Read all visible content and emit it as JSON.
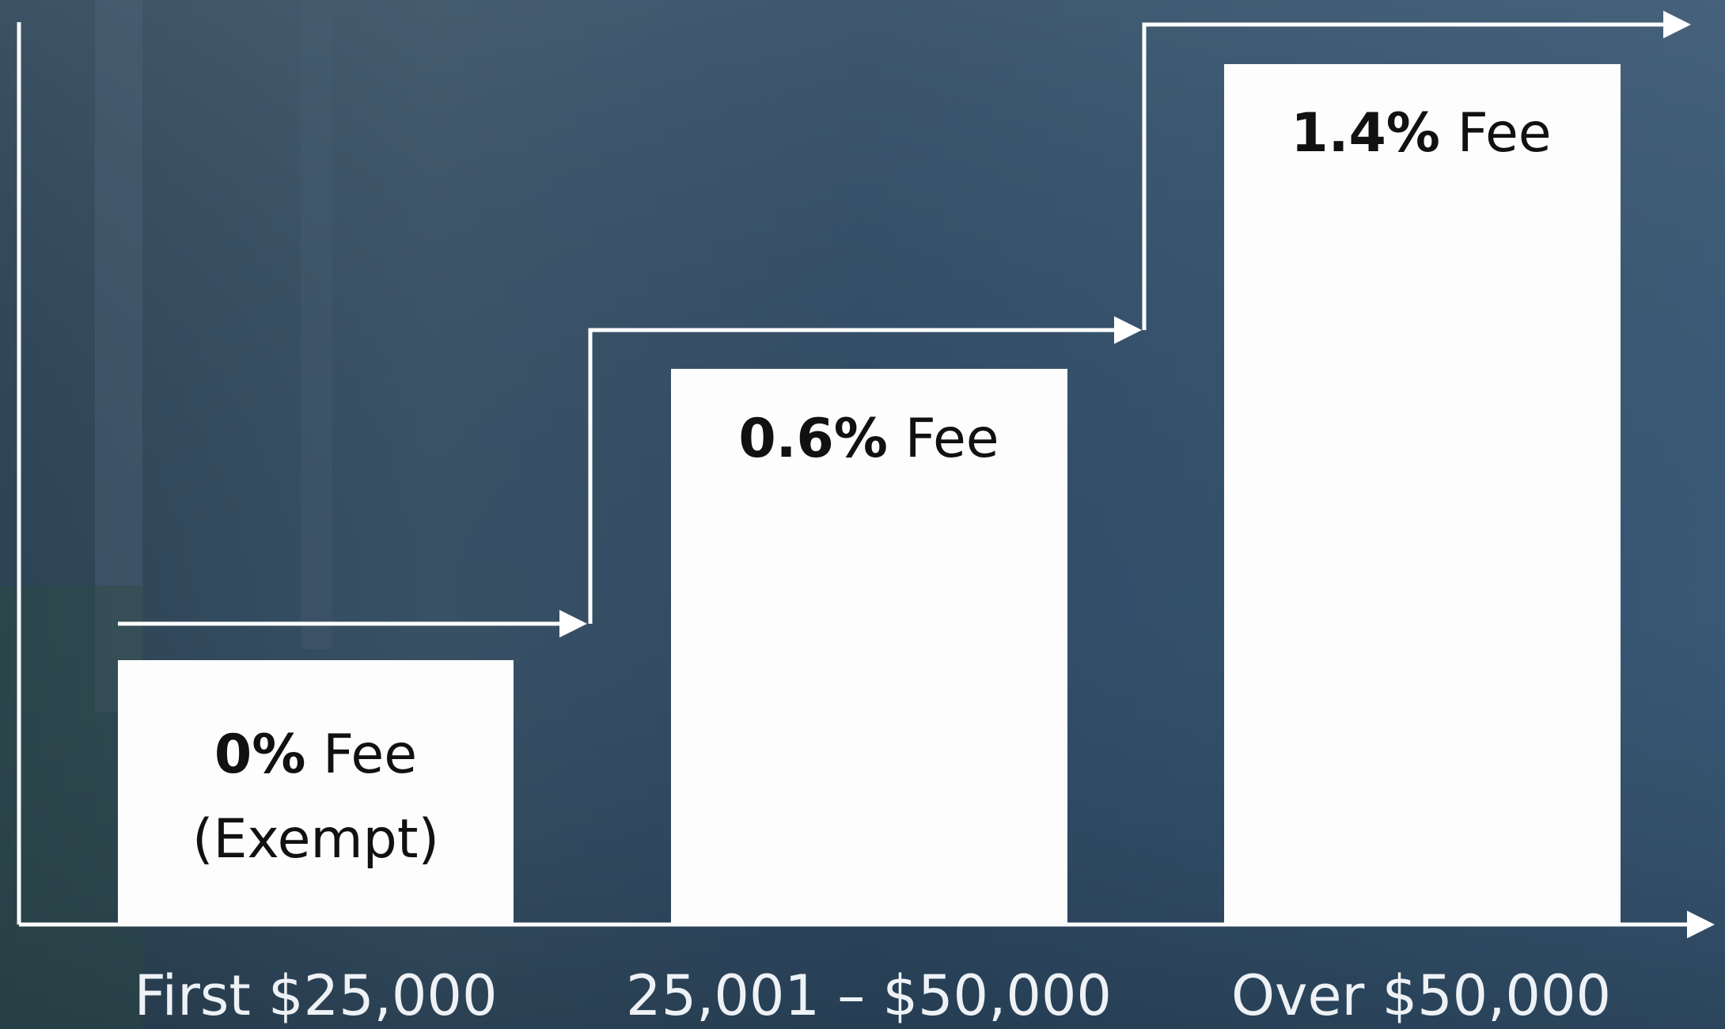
{
  "steps": [
    {
      "rate": "0%",
      "fee": "Fee",
      "note": "(Exempt)",
      "range": "First $25,000"
    },
    {
      "rate": "0.6%",
      "fee": "Fee",
      "range": "25,001 – $50,000"
    },
    {
      "rate": "1.4%",
      "fee": "Fee",
      "range": "Over $50,000"
    }
  ]
}
